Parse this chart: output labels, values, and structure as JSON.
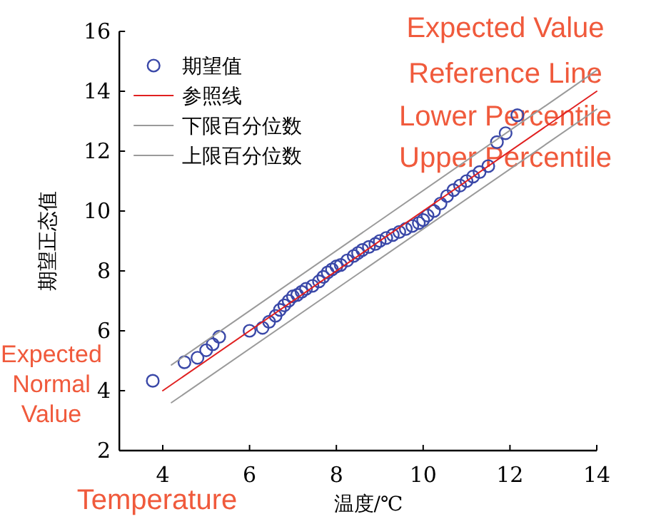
{
  "chart_data": {
    "type": "scatter",
    "xlabel": "温度/℃",
    "ylabel": "期望正态值",
    "xlim": [
      3,
      14
    ],
    "ylim": [
      2,
      16
    ],
    "xticks": [
      4,
      6,
      8,
      10,
      12,
      14
    ],
    "yticks": [
      2,
      4,
      6,
      8,
      10,
      12,
      14,
      16
    ],
    "legend": "top left",
    "grid": false,
    "series": [
      {
        "name": "期望值",
        "type": "scatter",
        "marker": "circle",
        "color": "#3a48a8",
        "x": [
          3.77,
          4.5,
          4.8,
          5.0,
          5.15,
          5.3,
          6.0,
          6.3,
          6.45,
          6.6,
          6.7,
          6.8,
          6.9,
          7.0,
          7.1,
          7.2,
          7.3,
          7.45,
          7.6,
          7.7,
          7.8,
          7.9,
          8.0,
          8.1,
          8.25,
          8.4,
          8.5,
          8.6,
          8.75,
          8.9,
          9.0,
          9.15,
          9.3,
          9.45,
          9.6,
          9.75,
          9.9,
          10.0,
          10.1,
          10.25,
          10.4,
          10.55,
          10.7,
          10.85,
          11.0,
          11.15,
          11.3,
          11.5,
          11.7,
          11.9,
          12.17
        ],
        "values": [
          4.33,
          4.95,
          5.1,
          5.35,
          5.55,
          5.8,
          6.0,
          6.1,
          6.3,
          6.5,
          6.7,
          6.85,
          7.0,
          7.15,
          7.2,
          7.3,
          7.4,
          7.5,
          7.65,
          7.8,
          7.95,
          8.05,
          8.15,
          8.2,
          8.35,
          8.5,
          8.6,
          8.7,
          8.8,
          8.9,
          9.0,
          9.1,
          9.2,
          9.3,
          9.4,
          9.5,
          9.6,
          9.7,
          9.85,
          10.0,
          10.25,
          10.5,
          10.7,
          10.85,
          11.0,
          11.15,
          11.3,
          11.5,
          12.3,
          12.6,
          13.2
        ]
      },
      {
        "name": "参照线",
        "type": "line",
        "marker": "none",
        "color": "#e02020",
        "x": [
          4,
          14
        ],
        "values": [
          4,
          14
        ]
      },
      {
        "name": "下限百分位数",
        "type": "line",
        "marker": "none",
        "color": "#9a9a9a",
        "x": [
          4.2,
          14
        ],
        "values": [
          3.6,
          13.4
        ]
      },
      {
        "name": "上限百分位数",
        "type": "line",
        "marker": "none",
        "color": "#9a9a9a",
        "x": [
          4.2,
          14
        ],
        "values": [
          4.86,
          14.7
        ]
      }
    ],
    "annotations": [
      "Expected Value",
      "Reference Line",
      "Lower Percentile",
      "Upper Percentile",
      "Expected Normal Value",
      "Temperature"
    ]
  }
}
